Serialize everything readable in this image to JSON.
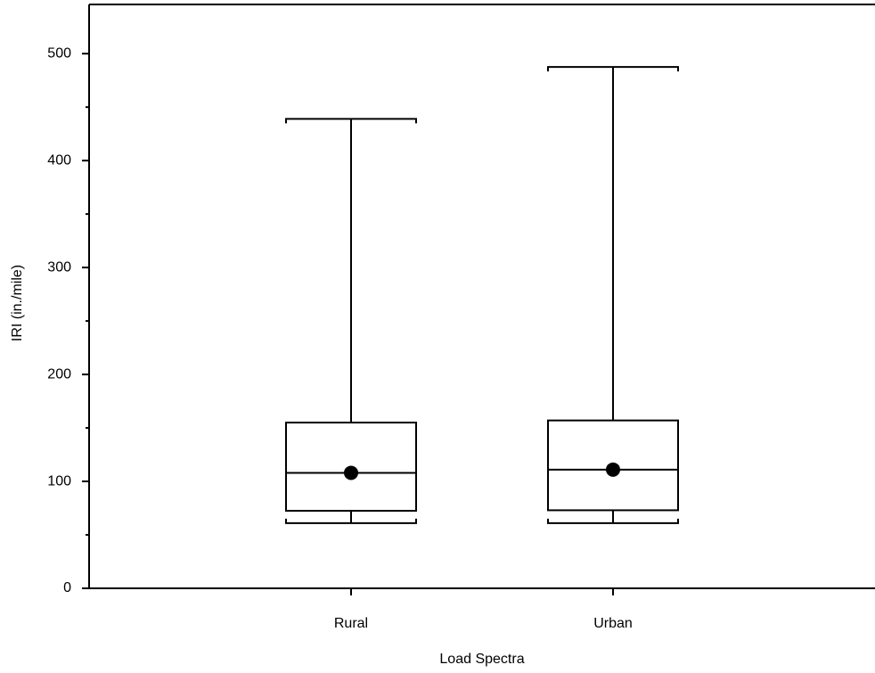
{
  "chart_data": {
    "type": "box",
    "x_label": "Load Spectra",
    "y_label": "IRI (in./mile)",
    "categories": [
      "Rural",
      "Urban"
    ],
    "boxes": [
      {
        "whisker_low": 61,
        "q1": 72.5,
        "median": 108,
        "q3": 155,
        "whisker_high": 439,
        "mean": 108
      },
      {
        "whisker_low": 61,
        "q1": 73,
        "median": 111,
        "q3": 157,
        "whisker_high": 487.5,
        "mean": 111
      }
    ],
    "ylim": [
      0,
      546
    ],
    "yticks": [
      0,
      100,
      200,
      300,
      400,
      500
    ],
    "minor_yticks": [
      50,
      150,
      250,
      350,
      450
    ],
    "color": "#000000"
  }
}
